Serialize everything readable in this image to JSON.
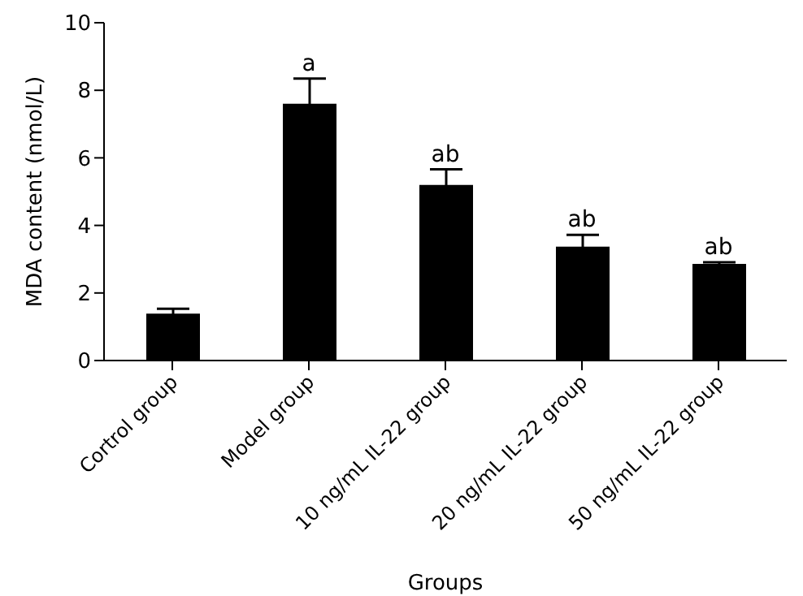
{
  "chart_data": {
    "type": "bar",
    "xlabel": "Groups",
    "ylabel": "MDA content (nmol/L)",
    "categories": [
      "Cortrol group",
      "Model group",
      "10 ng/mL IL-22 group",
      "20 ng/mL IL-22 group",
      "50 ng/mL IL-22 group"
    ],
    "values": [
      1.39,
      7.6,
      5.2,
      3.37,
      2.86
    ],
    "errors": [
      0.14,
      0.75,
      0.46,
      0.35,
      0.05
    ],
    "color": "#000000",
    "ylim": [
      0,
      10
    ],
    "yticks": [
      0,
      2,
      4,
      6,
      8,
      10
    ],
    "grid": false,
    "legend": false,
    "annotations": [
      {
        "text": "a",
        "x": "Model group",
        "y": 8.35
      },
      {
        "text": "ab",
        "x": "10 ng/mL IL-22 group",
        "y": 5.66
      },
      {
        "text": "ab",
        "x": "20 ng/mL IL-22 group",
        "y": 3.72
      },
      {
        "text": "ab",
        "x": "50 ng/mL IL-22 group",
        "y": 2.91
      }
    ]
  }
}
